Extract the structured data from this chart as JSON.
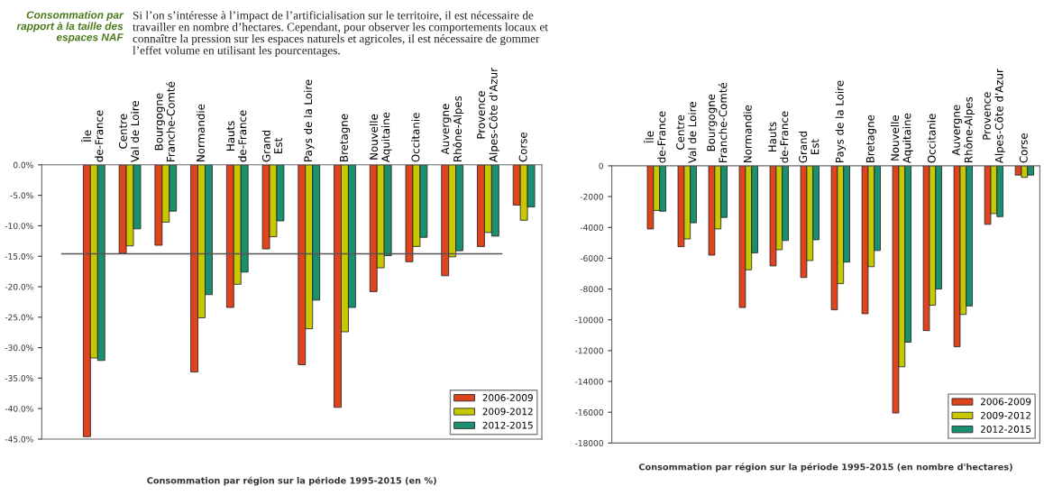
{
  "chart_data": [
    {
      "type": "bar",
      "title": "Consommation par\nrapport à la taille des\nespaces NAF",
      "subtitle": "Si l’on s’intéresse à l’impact de l’artificialisation sur le territoire, il est nécessaire de\ntravailler en nombre d’hectares. Cependant, pour observer les comportements locaux et\nconnaître la pression sur les espaces naturels et agricoles, il est nécessaire de gommer\nl’effet volume en utilisant les pourcentages.",
      "xlabel": "Consommation par région sur la période 1995-2015 (en %)",
      "categories": [
        "Île\nde-France",
        "Centre\nVal de Loire",
        "Bourgogne\nFranche-Comté",
        "Normandie",
        "Hauts\nde-France",
        "Grand\nEst",
        "Pays de la Loire",
        "Bretagne",
        "Nouvelle\nAquitaine",
        "Occitanie",
        "Auvergne\nRhône-Alpes",
        "Provence\nAlpes-Côte d'Azur",
        "Corse"
      ],
      "series": [
        {
          "name": "2006-2009",
          "color": "#e0441c",
          "values": [
            -44.6,
            -14.5,
            -13.2,
            -34.0,
            -23.4,
            -13.8,
            -32.8,
            -39.8,
            -20.8,
            -15.9,
            -18.2,
            -13.4,
            -6.6
          ]
        },
        {
          "name": "2009-2012",
          "color": "#c8c800",
          "values": [
            -31.7,
            -13.3,
            -9.4,
            -25.1,
            -19.6,
            -11.8,
            -26.9,
            -27.4,
            -16.9,
            -13.4,
            -15.1,
            -11.1,
            -9.1
          ]
        },
        {
          "name": "2012-2015",
          "color": "#1a9070",
          "values": [
            -32.1,
            -10.5,
            -7.6,
            -21.3,
            -17.6,
            -9.2,
            -22.2,
            -23.4,
            -14.9,
            -11.9,
            -14.1,
            -11.7,
            -6.9
          ]
        }
      ],
      "ylim": [
        -45,
        0
      ],
      "yticks": [
        {
          "value": 0,
          "label": "0.0%"
        },
        {
          "value": -5,
          "label": "-5.0%"
        },
        {
          "value": -10,
          "label": "-10.0%"
        },
        {
          "value": -15,
          "label": "-15.0%"
        },
        {
          "value": -20,
          "label": "-20.0%"
        },
        {
          "value": -25,
          "label": "-25.0%"
        },
        {
          "value": -30,
          "label": "-30.0%"
        },
        {
          "value": -35,
          "label": "-35.0%"
        },
        {
          "value": -40,
          "label": "-40.0%"
        },
        {
          "value": -45,
          "label": "-45.0%"
        }
      ],
      "ref_lines": [
        {
          "axis": "y",
          "value": -14.6,
          "color": "#555555"
        }
      ],
      "legend": "bottom right",
      "grid": false
    },
    {
      "type": "bar",
      "xlabel": "Consommation par région sur la période 1995-2015 (en nombre d'hectares)",
      "categories": [
        "Île\nde-France",
        "Centre\nVal de Loire",
        "Bourgogne\nFranche-Comté",
        "Normandie",
        "Hauts\nde-France",
        "Grand\nEst",
        "Pays de la Loire",
        "Bretagne",
        "Nouvelle\nAquitaine",
        "Occitanie",
        "Auvergne\nRhône-Alpes",
        "Provence\nAlpes-Côte d'Azur",
        "Corse"
      ],
      "series": [
        {
          "name": "2006-2009",
          "color": "#e0441c",
          "values": [
            -4100,
            -5250,
            -5800,
            -9200,
            -6500,
            -7250,
            -9350,
            -9600,
            -16050,
            -10700,
            -11750,
            -3800,
            -600
          ]
        },
        {
          "name": "2009-2012",
          "color": "#c8c800",
          "values": [
            -2900,
            -4750,
            -4100,
            -6750,
            -5450,
            -6150,
            -7650,
            -6550,
            -13050,
            -9050,
            -9650,
            -3100,
            -750
          ]
        },
        {
          "name": "2012-2015",
          "color": "#1a9070",
          "values": [
            -2950,
            -3700,
            -3350,
            -5650,
            -4850,
            -4800,
            -6250,
            -5500,
            -11450,
            -8000,
            -9100,
            -3300,
            -600
          ]
        }
      ],
      "ylim": [
        -18000,
        0
      ],
      "yticks": [
        0,
        -2000,
        -4000,
        -6000,
        -8000,
        -10000,
        -12000,
        -14000,
        -16000,
        -18000
      ],
      "legend": "bottom right",
      "grid": false
    }
  ]
}
